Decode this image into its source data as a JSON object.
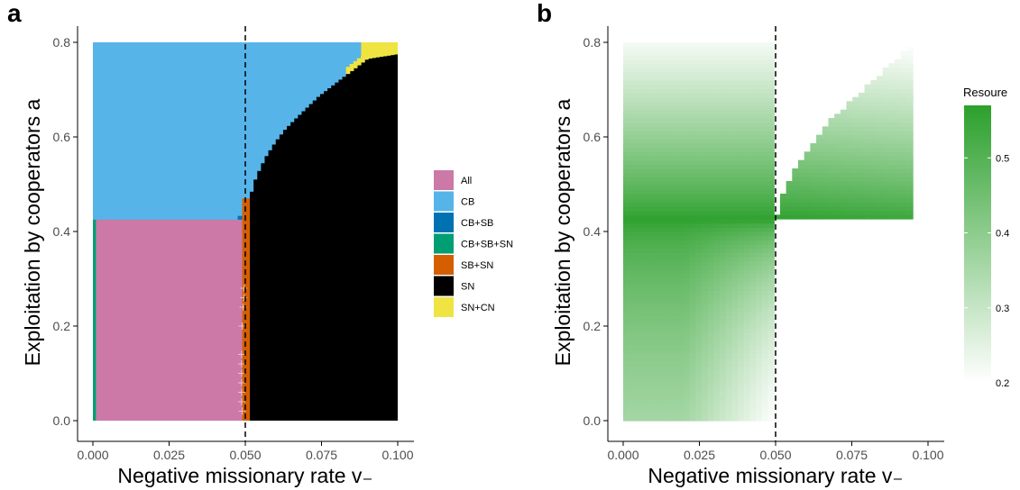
{
  "panels": {
    "a": {
      "label": "a"
    },
    "b": {
      "label": "b"
    }
  },
  "chart_data": [
    {
      "type": "heatmap",
      "title": "",
      "panel_label": "a",
      "xlabel": "Negative missionary rate v₋",
      "ylabel": "Exploitation by cooperators a",
      "xlim": [
        0.0,
        0.1
      ],
      "ylim": [
        0.0,
        0.8
      ],
      "x_ticks": [
        "0.000",
        "0.025",
        "0.050",
        "0.075",
        "0.100"
      ],
      "y_ticks": [
        "0.0",
        "0.2",
        "0.4",
        "0.6",
        "0.8"
      ],
      "grid": false,
      "reference_line": {
        "x": 0.05,
        "style": "dashed"
      },
      "legend": {
        "title": "",
        "position": "right",
        "entries": [
          {
            "label": "All",
            "color": "#CC79A7"
          },
          {
            "label": "CB",
            "color": "#56B4E9"
          },
          {
            "label": "CB+SB",
            "color": "#0072B2"
          },
          {
            "label": "CB+SB+SN",
            "color": "#009E73"
          },
          {
            "label": "SB+SN",
            "color": "#D55E00"
          },
          {
            "label": "SN",
            "color": "#000000"
          },
          {
            "label": "SN+CN",
            "color": "#F0E442"
          }
        ]
      },
      "regions": [
        {
          "state": "CB",
          "description": "a above ~0.425 for v₋ below the SN boundary"
        },
        {
          "state": "All",
          "x": [
            0.001,
            0.049
          ],
          "y": [
            0.0,
            0.425
          ]
        },
        {
          "state": "CB+SB+SN",
          "x": [
            0.0,
            0.001
          ],
          "y": [
            0.0,
            0.425
          ]
        },
        {
          "state": "CB+SB",
          "x": [
            0.0475,
            0.049
          ],
          "y": [
            0.425,
            0.433
          ]
        },
        {
          "state": "SB+SN",
          "x": [
            0.049,
            0.0515
          ],
          "y": [
            0.0,
            0.47
          ]
        },
        {
          "state": "SN",
          "x": [
            0.0515,
            0.1
          ],
          "y": [
            0.0,
            0.77
          ]
        },
        {
          "state": "SN+CN",
          "x": [
            0.088,
            0.1
          ],
          "y": [
            0.75,
            0.8
          ]
        }
      ],
      "sn_boundary": {
        "x": [
          0.0515,
          0.053,
          0.055,
          0.057,
          0.06,
          0.063,
          0.066,
          0.07,
          0.074,
          0.078,
          0.082,
          0.086,
          0.088,
          0.09,
          0.095,
          0.1
        ],
        "y": [
          0.47,
          0.505,
          0.535,
          0.56,
          0.59,
          0.615,
          0.635,
          0.66,
          0.685,
          0.705,
          0.725,
          0.745,
          0.755,
          0.765,
          0.77,
          0.775
        ]
      }
    },
    {
      "type": "heatmap",
      "title": "",
      "panel_label": "b",
      "xlabel": "Negative missionary rate v₋",
      "ylabel": "Exploitation by cooperators a",
      "xlim": [
        0.0,
        0.1
      ],
      "ylim": [
        0.0,
        0.8
      ],
      "x_ticks": [
        "0.000",
        "0.025",
        "0.050",
        "0.075",
        "0.100"
      ],
      "y_ticks": [
        "0.0",
        "0.2",
        "0.4",
        "0.6",
        "0.8"
      ],
      "grid": false,
      "reference_line": {
        "x": 0.05,
        "style": "dashed"
      },
      "colorbar": {
        "title": "Resoure",
        "min": 0.2,
        "max": 0.57,
        "ticks": [
          "0.2",
          "0.3",
          "0.4",
          "0.5"
        ],
        "low_color": "#ffffff",
        "high_color": "#2ca02c",
        "position": "right"
      },
      "peak": {
        "a": 0.425,
        "value": 0.57
      },
      "boundary_upper": {
        "x": [
          0.05,
          0.052,
          0.054,
          0.057,
          0.06,
          0.064,
          0.068,
          0.073,
          0.078,
          0.083,
          0.088,
          0.092,
          0.094
        ],
        "y": [
          0.43,
          0.47,
          0.505,
          0.54,
          0.57,
          0.605,
          0.635,
          0.665,
          0.695,
          0.725,
          0.755,
          0.78,
          0.795
        ]
      }
    }
  ]
}
